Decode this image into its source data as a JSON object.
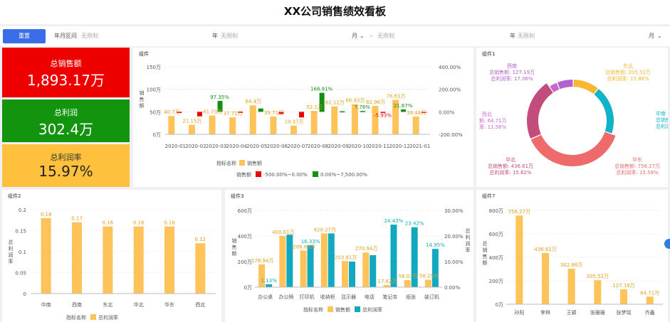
{
  "header": {
    "title": "XX公司销售绩效看板"
  },
  "filter": {
    "reset_label": "重置",
    "range_label": "年月区间",
    "placeholder": "无限制",
    "year_unit": "年",
    "month_unit": "月",
    "separator": "-"
  },
  "kpis": [
    {
      "label": "总销售额",
      "value": "1,893.17万",
      "color": "#ee0000"
    },
    {
      "label": "总利润",
      "value": "302.4万",
      "color": "#13940f"
    },
    {
      "label": "总利润率",
      "value": "15.97%",
      "color": "#ffc13d"
    }
  ],
  "chart_data": [
    {
      "id": "monthly",
      "type": "bar",
      "title": "组件",
      "ylabel": "销售额",
      "y_ticks": [
        "150万",
        "100万",
        "50万",
        "0万"
      ],
      "y2_ticks": [
        "400.00%",
        "200.00%",
        "0.00%",
        "-200.00%"
      ],
      "ylim": [
        0,
        150
      ],
      "y2lim": [
        -200,
        400
      ],
      "categories": [
        "2020-01",
        "2020-02",
        "2020-03",
        "2020-04",
        "2020-05",
        "2020-06",
        "2020-07",
        "2020-08",
        "2020-09",
        "2020-10",
        "2020-11",
        "2020-12",
        "2021-01"
      ],
      "sales": [
        40.7,
        21.15,
        41.73,
        37.71,
        64.4,
        39.71,
        19.37,
        52.1,
        62.12,
        66.93,
        62.96,
        76.61,
        39.44
      ],
      "sales_labels": [
        "40.7万",
        "21.15万",
        "41.73万",
        "37.71万",
        "64.4万",
        "39.71万",
        "19.37万",
        "52.1万",
        "62.12万",
        "66.93万",
        "62.96万",
        "76.61万",
        "39.44万"
      ],
      "growth": [
        -10,
        -40,
        97.35,
        -1,
        30,
        -20,
        -50,
        168.91,
        5,
        7.76,
        -5.93,
        21.67,
        -1
      ],
      "growth_labels": [
        "",
        "",
        "97.35%",
        "",
        "",
        "",
        "",
        "168.91%",
        "",
        "7.76%",
        "-5.93%",
        "21.67%",
        ""
      ],
      "legend_title": "指标名称",
      "legend_sales": "销售额",
      "legend2_title": "销售额",
      "legend_neg": "-500.00%~0.00%",
      "legend_pos": "0.00%~7,500.00%",
      "colors": {
        "bar": "#ffc35a",
        "neg": "#ee0000",
        "pos": "#138f12"
      }
    },
    {
      "id": "region-pie",
      "type": "pie",
      "title": "组件1",
      "slices": [
        {
          "name": "东北",
          "sales": "205.52万",
          "rate": "15.88%",
          "value": 205.52,
          "color": "#f7b731"
        },
        {
          "name": "中南",
          "sales": "",
          "rate": "",
          "value": 381.62,
          "color": "#12b3c8"
        },
        {
          "name": "华东",
          "sales": "756.27万",
          "rate": "15.59%",
          "value": 756.27,
          "color": "#ef6b6b"
        },
        {
          "name": "华北",
          "sales": "436.61万",
          "rate": "15.62%",
          "value": 436.61,
          "color": "#c24d7c"
        },
        {
          "name": "西北",
          "sales": "64.71万",
          "rate": "11.56%",
          "value": 64.71,
          "color": "#cc66cc"
        },
        {
          "name": "西南",
          "sales": "127.19万",
          "rate": "17.06%",
          "value": 127.19,
          "color": "#b560d0"
        }
      ],
      "sales_prefix": "总销售额:",
      "rate_prefix": "总利润率:",
      "zhongnan_line1": "总销售额",
      "zhongnan_line2": "总利润率",
      "xibei_line1": "额: 64.71万",
      "xibei_line2": "率: 11.56%"
    },
    {
      "id": "region-rate",
      "type": "bar",
      "title": "组件2",
      "ylabel": "总利润率",
      "y_ticks": [
        "0.2",
        "0.15",
        "0.1",
        "0.05",
        "0"
      ],
      "ylim": [
        0,
        0.2
      ],
      "categories": [
        "中南",
        "西南",
        "东北",
        "华北",
        "华东",
        "西北"
      ],
      "values": [
        0.18,
        0.17,
        0.16,
        0.16,
        0.16,
        0.12
      ],
      "value_labels": [
        "0.18",
        "0.17",
        "0.16",
        "0.16",
        "0.16",
        "0.12"
      ],
      "xlabel": "指标名称",
      "legend_label": "总利润率",
      "colors": {
        "bar": "#ffc35a"
      }
    },
    {
      "id": "product",
      "type": "bar",
      "title": "组件3",
      "ylabel": "销售额",
      "y2label": "总利润率",
      "y_ticks": [
        "600万",
        "400万",
        "200万",
        "0万"
      ],
      "y2_ticks": [
        "30.00%",
        "20.00%",
        "10.00%",
        "0.00%"
      ],
      "ylim": [
        0,
        600
      ],
      "y2lim": [
        0,
        30
      ],
      "categories": [
        "办公桌",
        "办公椅",
        "打印机",
        "收纳柜",
        "显示器",
        "电话",
        "笔记本",
        "纸张",
        "装订机"
      ],
      "sales": [
        178.94,
        400.61,
        286.63,
        420.27,
        203.81,
        270.94,
        17.62,
        56.07,
        58.25
      ],
      "sales_labels": [
        "178.94万",
        "400.61万",
        "286.63万",
        "420.27万",
        "203.81万",
        "270.94万",
        "17.62万",
        "56.07万",
        "58.25万"
      ],
      "rate": [
        1.13,
        20.5,
        16.33,
        21.0,
        10.0,
        12.5,
        24.43,
        23.42,
        14.95
      ],
      "rate_labels": [
        "1.13%",
        "",
        "16.33%",
        "",
        "",
        "",
        "24.43%",
        "23.42%",
        "14.95%"
      ],
      "xlabel": "指标名称",
      "legend_sales": "销售额",
      "legend_rate": "总利润率",
      "colors": {
        "sales": "#ffc35a",
        "rate": "#12a8c0"
      }
    },
    {
      "id": "person",
      "type": "bar",
      "title": "组件7",
      "ylabel": "总销售额",
      "y_ticks": [
        "800万",
        "600万",
        "400万",
        "200万",
        "0万"
      ],
      "ylim": [
        0,
        800
      ],
      "categories": [
        "孙阳",
        "李林",
        "王颖",
        "张珊珊",
        "张梦瑶",
        "齐鑫"
      ],
      "values": [
        756.27,
        436.61,
        302.86,
        205.52,
        127.19,
        64.71
      ],
      "value_labels": [
        "756.27万",
        "436.61万",
        "302.86万",
        "205.52万",
        "127.19万",
        "64.71万"
      ],
      "colors": {
        "bar": "#ffc35a"
      }
    }
  ]
}
